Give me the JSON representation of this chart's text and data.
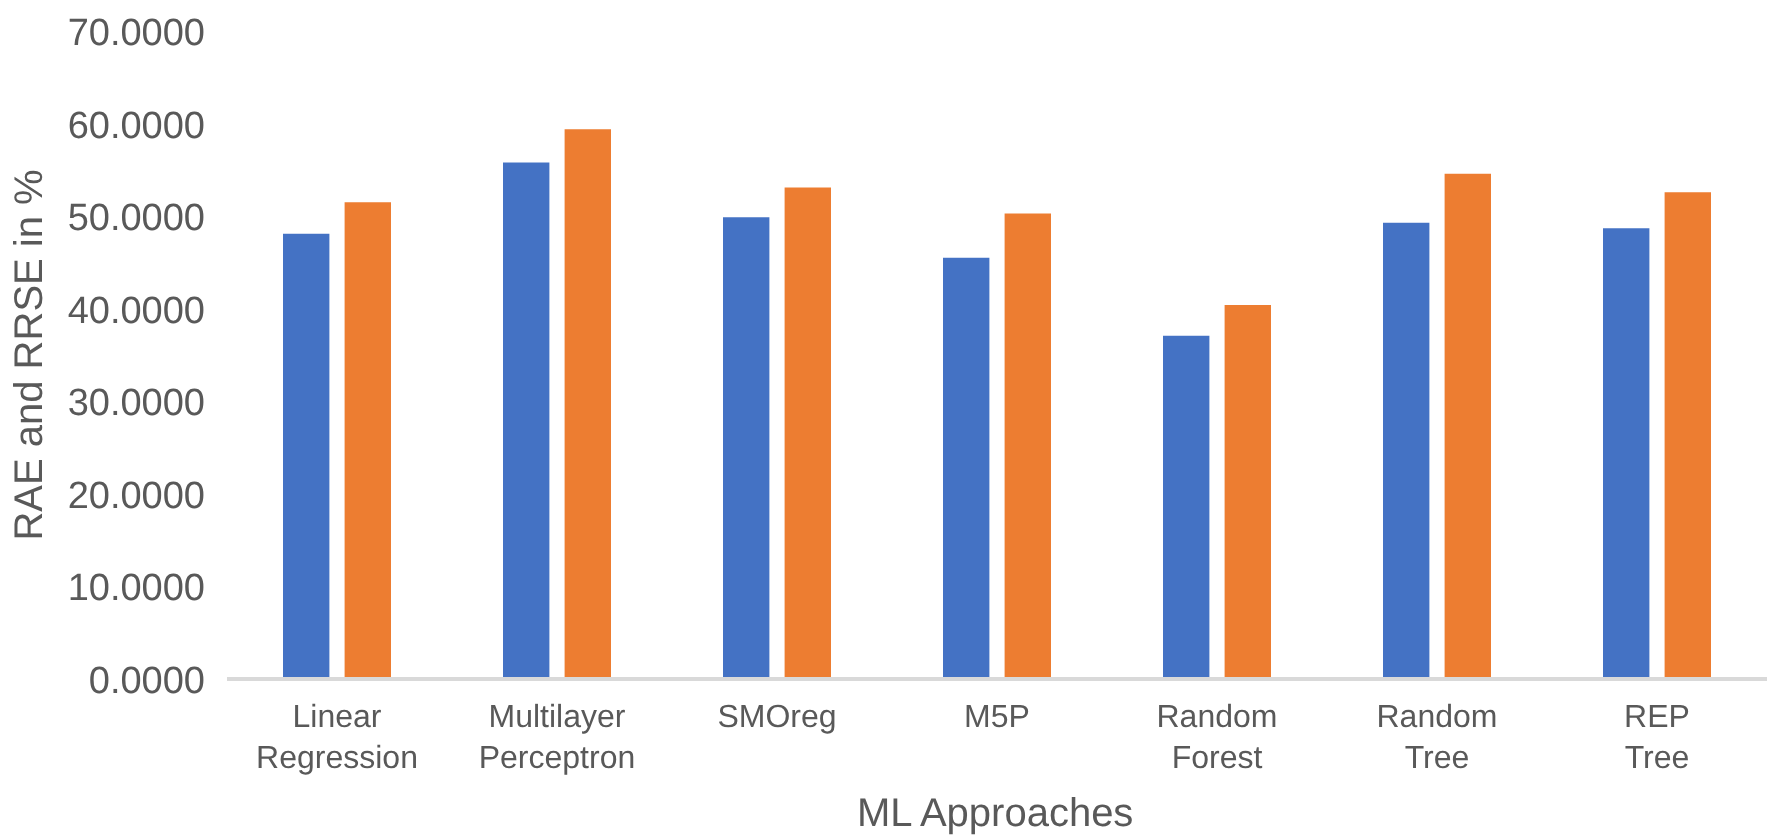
{
  "chart_data": {
    "type": "bar",
    "xlabel": "ML Approaches",
    "ylabel": "RAE and RRSE in %",
    "categories": [
      "Linear Regression",
      "Multilayer Perceptron",
      "SMOreg",
      "M5P",
      "Random Forest",
      "Random Tree",
      "REP Tree"
    ],
    "series": [
      {
        "color": "#4472c4",
        "values": [
          48.2,
          55.9,
          50.0,
          45.6,
          37.2,
          49.4,
          48.8
        ]
      },
      {
        "color": "#ed7d31",
        "values": [
          51.6,
          59.5,
          53.2,
          50.4,
          40.5,
          54.7,
          52.7
        ]
      }
    ],
    "ylim": [
      0,
      70
    ],
    "yticks": [
      {
        "value": 0,
        "label": "0.0000"
      },
      {
        "value": 10,
        "label": "10.0000"
      },
      {
        "value": 20,
        "label": "20.0000"
      },
      {
        "value": 30,
        "label": "30.0000"
      },
      {
        "value": 40,
        "label": "40.0000"
      },
      {
        "value": 50,
        "label": "50.0000"
      },
      {
        "value": 60,
        "label": "60.0000"
      },
      {
        "value": 70,
        "label": "70.0000"
      }
    ],
    "grid": false
  }
}
